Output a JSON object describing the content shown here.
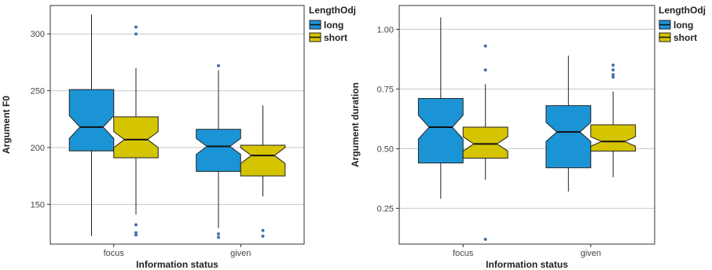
{
  "colors": {
    "long": "#1b94d6",
    "short": "#d5c400",
    "grid": "#c8c8c8",
    "outlier": "#4a6fa8",
    "frame": "#333333"
  },
  "chart_data": [
    {
      "type": "boxplot",
      "notched": true,
      "title": "",
      "xlabel": "Information status",
      "ylabel": "Argument F0",
      "ylim": [
        115,
        325
      ],
      "yticks": [
        150,
        200,
        250,
        300
      ],
      "grid": "horizontal major",
      "categories": [
        "focus",
        "given"
      ],
      "legend": {
        "title": "LengthOdj",
        "placement": "right",
        "entries": [
          "long",
          "short"
        ]
      },
      "series": [
        {
          "name": "long",
          "boxes": [
            {
              "category": "focus",
              "min": 122,
              "q1": 197,
              "median": 218,
              "q3": 251,
              "max": 317,
              "notch_low": 208,
              "notch_high": 228,
              "outliers": []
            },
            {
              "category": "given",
              "min": 129,
              "q1": 179,
              "median": 201,
              "q3": 216,
              "max": 268,
              "notch_low": 194,
              "notch_high": 208,
              "outliers": [
                272,
                124,
                121
              ]
            }
          ]
        },
        {
          "name": "short",
          "boxes": [
            {
              "category": "focus",
              "min": 141,
              "q1": 191,
              "median": 207,
              "q3": 227,
              "max": 270,
              "notch_low": 200,
              "notch_high": 214,
              "outliers": [
                306,
                300,
                132,
                125,
                123
              ]
            },
            {
              "category": "given",
              "min": 157,
              "q1": 175,
              "median": 193,
              "q3": 202,
              "max": 237,
              "notch_low": 186,
              "notch_high": 200,
              "outliers": [
                127,
                122
              ]
            }
          ]
        }
      ]
    },
    {
      "type": "boxplot",
      "notched": true,
      "title": "",
      "xlabel": "Information status",
      "ylabel": "Argument duration",
      "ylim": [
        0.1,
        1.1
      ],
      "yticks": [
        "0.25",
        "0.50",
        "0.75",
        "1.00"
      ],
      "grid": "horizontal major",
      "categories": [
        "focus",
        "given"
      ],
      "legend": {
        "title": "LengthOdj",
        "placement": "right",
        "entries": [
          "long",
          "short"
        ]
      },
      "series": [
        {
          "name": "long",
          "boxes": [
            {
              "category": "focus",
              "min": 0.29,
              "q1": 0.44,
              "median": 0.59,
              "q3": 0.71,
              "max": 1.05,
              "notch_low": 0.54,
              "notch_high": 0.64,
              "outliers": []
            },
            {
              "category": "given",
              "min": 0.32,
              "q1": 0.42,
              "median": 0.57,
              "q3": 0.68,
              "max": 0.89,
              "notch_low": 0.53,
              "notch_high": 0.61,
              "outliers": []
            }
          ]
        },
        {
          "name": "short",
          "boxes": [
            {
              "category": "focus",
              "min": 0.37,
              "q1": 0.46,
              "median": 0.52,
              "q3": 0.59,
              "max": 0.77,
              "notch_low": 0.49,
              "notch_high": 0.55,
              "outliers": [
                0.93,
                0.83,
                0.12
              ]
            },
            {
              "category": "given",
              "min": 0.38,
              "q1": 0.49,
              "median": 0.53,
              "q3": 0.6,
              "max": 0.74,
              "notch_low": 0.51,
              "notch_high": 0.55,
              "outliers": [
                0.85,
                0.83,
                0.81,
                0.8
              ]
            }
          ]
        }
      ]
    }
  ]
}
